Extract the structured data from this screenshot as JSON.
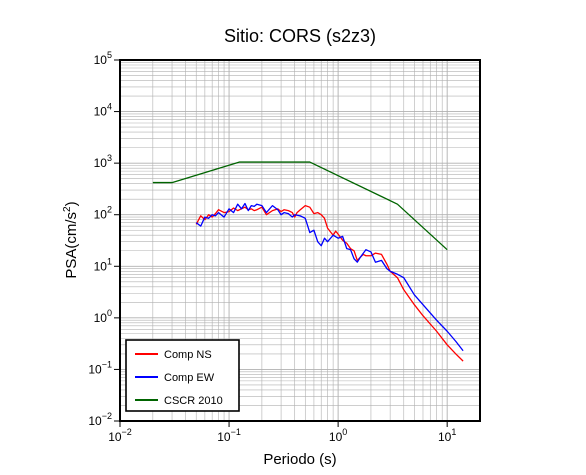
{
  "chart_data": {
    "type": "line",
    "title": "Sitio: CORS (s2z3)",
    "xlabel": "Periodo (s)",
    "ylabel": {
      "base": "PSA(cm/s",
      "sup": "2",
      "close": ")"
    },
    "x_scale": "log",
    "y_scale": "log",
    "xlim": [
      0.01,
      20
    ],
    "ylim": [
      0.01,
      100000
    ],
    "grid": true,
    "x_ticks": [
      {
        "value": 0.01,
        "base": "10",
        "exp": "−2"
      },
      {
        "value": 0.1,
        "base": "10",
        "exp": "−1"
      },
      {
        "value": 1,
        "base": "10",
        "exp": "0"
      },
      {
        "value": 10,
        "base": "10",
        "exp": "1"
      }
    ],
    "y_ticks": [
      {
        "value": 0.01,
        "base": "10",
        "exp": "−2"
      },
      {
        "value": 0.1,
        "base": "10",
        "exp": "−1"
      },
      {
        "value": 1,
        "base": "10",
        "exp": "0"
      },
      {
        "value": 10,
        "base": "10",
        "exp": "1"
      },
      {
        "value": 100,
        "base": "10",
        "exp": "2"
      },
      {
        "value": 1000,
        "base": "10",
        "exp": "3"
      },
      {
        "value": 10000,
        "base": "10",
        "exp": "4"
      },
      {
        "value": 100000,
        "base": "10",
        "exp": "5"
      }
    ],
    "legend_position": "bottom-left",
    "series": [
      {
        "name": "Comp NS",
        "color": "#ff0000",
        "points": [
          [
            0.05,
            65
          ],
          [
            0.055,
            95
          ],
          [
            0.06,
            80
          ],
          [
            0.065,
            100
          ],
          [
            0.07,
            90
          ],
          [
            0.075,
            105
          ],
          [
            0.08,
            125
          ],
          [
            0.09,
            110
          ],
          [
            0.1,
            115
          ],
          [
            0.11,
            135
          ],
          [
            0.12,
            120
          ],
          [
            0.13,
            130
          ],
          [
            0.14,
            140
          ],
          [
            0.15,
            125
          ],
          [
            0.16,
            130
          ],
          [
            0.17,
            120
          ],
          [
            0.18,
            125
          ],
          [
            0.2,
            140
          ],
          [
            0.22,
            100
          ],
          [
            0.25,
            120
          ],
          [
            0.28,
            130
          ],
          [
            0.3,
            115
          ],
          [
            0.32,
            125
          ],
          [
            0.35,
            120
          ],
          [
            0.38,
            110
          ],
          [
            0.4,
            90
          ],
          [
            0.42,
            110
          ],
          [
            0.45,
            125
          ],
          [
            0.5,
            150
          ],
          [
            0.55,
            140
          ],
          [
            0.6,
            105
          ],
          [
            0.65,
            110
          ],
          [
            0.7,
            100
          ],
          [
            0.75,
            85
          ],
          [
            0.8,
            55
          ],
          [
            0.9,
            40
          ],
          [
            0.95,
            48
          ],
          [
            1.0,
            42
          ],
          [
            1.1,
            32
          ],
          [
            1.2,
            28
          ],
          [
            1.3,
            22
          ],
          [
            1.4,
            20
          ],
          [
            1.5,
            13
          ],
          [
            1.6,
            15
          ],
          [
            1.7,
            17
          ],
          [
            1.8,
            16
          ],
          [
            2.0,
            16
          ],
          [
            2.2,
            18
          ],
          [
            2.5,
            17
          ],
          [
            2.8,
            11
          ],
          [
            3.0,
            8
          ],
          [
            3.5,
            6
          ],
          [
            4.0,
            3.5
          ],
          [
            5.0,
            1.8
          ],
          [
            6.0,
            1.1
          ],
          [
            8.0,
            0.55
          ],
          [
            10.0,
            0.3
          ],
          [
            12.0,
            0.2
          ],
          [
            14.0,
            0.145
          ]
        ]
      },
      {
        "name": "Comp EW",
        "color": "#0000ff",
        "points": [
          [
            0.05,
            70
          ],
          [
            0.055,
            60
          ],
          [
            0.06,
            90
          ],
          [
            0.065,
            85
          ],
          [
            0.07,
            100
          ],
          [
            0.075,
            95
          ],
          [
            0.08,
            110
          ],
          [
            0.09,
            90
          ],
          [
            0.1,
            130
          ],
          [
            0.11,
            110
          ],
          [
            0.12,
            160
          ],
          [
            0.13,
            130
          ],
          [
            0.14,
            165
          ],
          [
            0.15,
            120
          ],
          [
            0.16,
            150
          ],
          [
            0.17,
            145
          ],
          [
            0.18,
            160
          ],
          [
            0.2,
            150
          ],
          [
            0.22,
            110
          ],
          [
            0.25,
            150
          ],
          [
            0.28,
            125
          ],
          [
            0.3,
            100
          ],
          [
            0.32,
            110
          ],
          [
            0.35,
            105
          ],
          [
            0.38,
            90
          ],
          [
            0.4,
            100
          ],
          [
            0.45,
            95
          ],
          [
            0.5,
            85
          ],
          [
            0.55,
            45
          ],
          [
            0.6,
            50
          ],
          [
            0.65,
            30
          ],
          [
            0.7,
            25
          ],
          [
            0.75,
            35
          ],
          [
            0.8,
            30
          ],
          [
            0.9,
            40
          ],
          [
            1.0,
            35
          ],
          [
            1.1,
            38
          ],
          [
            1.2,
            22
          ],
          [
            1.3,
            21
          ],
          [
            1.4,
            14
          ],
          [
            1.5,
            12
          ],
          [
            1.6,
            15
          ],
          [
            1.8,
            21
          ],
          [
            2.0,
            19
          ],
          [
            2.2,
            12
          ],
          [
            2.5,
            13
          ],
          [
            2.8,
            9
          ],
          [
            3.0,
            8
          ],
          [
            3.5,
            7
          ],
          [
            4.0,
            6
          ],
          [
            5.0,
            2.8
          ],
          [
            6.0,
            1.8
          ],
          [
            8.0,
            0.9
          ],
          [
            10.0,
            0.55
          ],
          [
            12.0,
            0.35
          ],
          [
            14.0,
            0.23
          ]
        ]
      },
      {
        "name": "CSCR 2010",
        "color": "#006400",
        "points": [
          [
            0.02,
            420
          ],
          [
            0.03,
            420
          ],
          [
            0.125,
            1050
          ],
          [
            0.55,
            1050
          ],
          [
            3.5,
            160
          ],
          [
            10.0,
            21
          ]
        ]
      }
    ]
  }
}
